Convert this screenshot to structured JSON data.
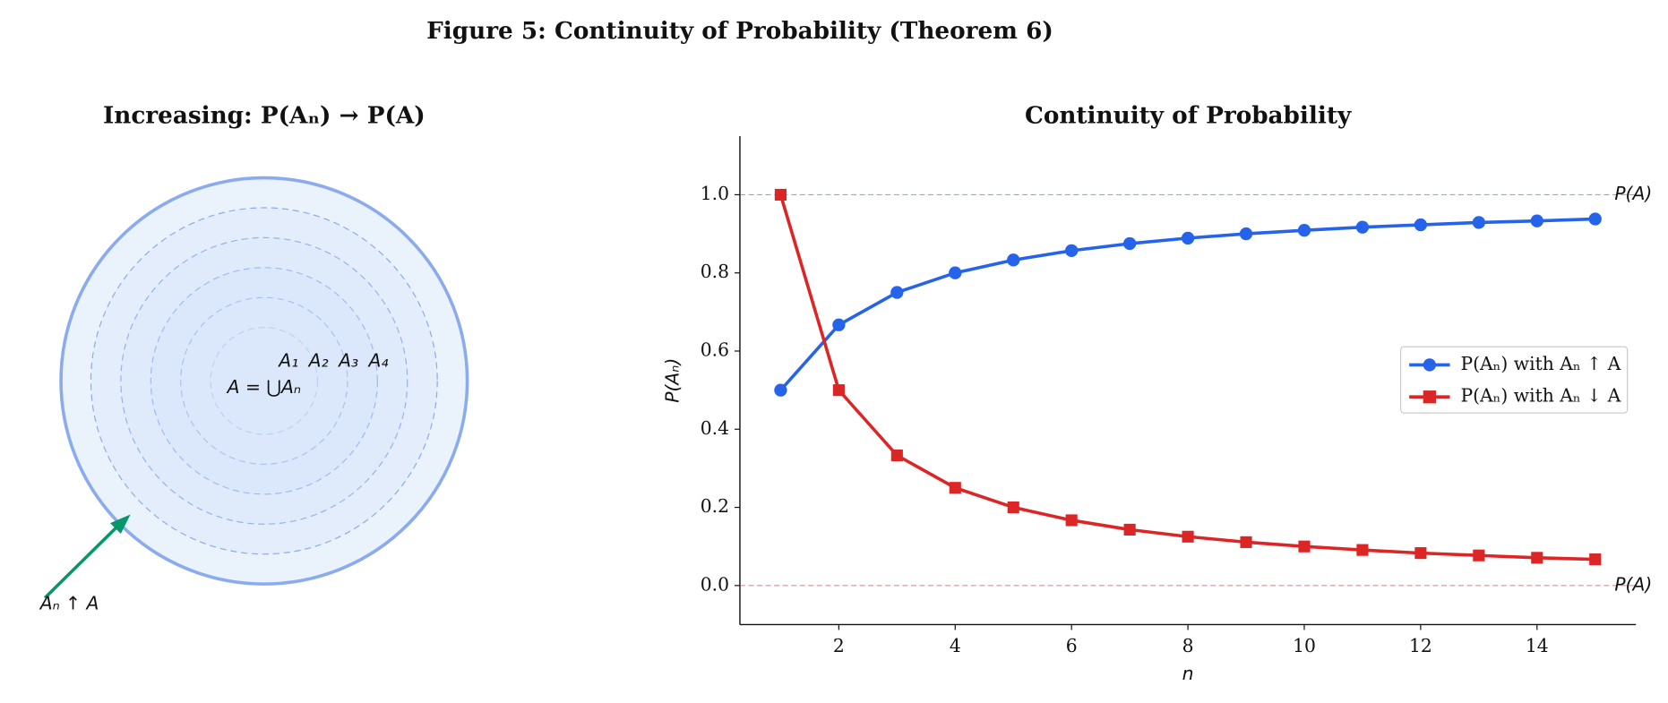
{
  "title": "Figure 5: Continuity of Probability (Theorem 6)",
  "chart_data": [
    {
      "type": "diagram",
      "title": "Increasing: P(Aₙ) → P(A)",
      "union_label": "A = ⋃Aₙ",
      "set_labels": [
        "A₁",
        "A₂",
        "A₃",
        "A₄"
      ],
      "arrow_label": "Aₙ ↑ A",
      "color": "#2563eb",
      "arrow_color": "#059669"
    },
    {
      "type": "line",
      "title": "Continuity of Probability",
      "xlabel": "n",
      "ylabel": "P(Aₙ)",
      "x": [
        1,
        2,
        3,
        4,
        5,
        6,
        7,
        8,
        9,
        10,
        11,
        12,
        13,
        14,
        15
      ],
      "series": [
        {
          "name": "P(Aₙ) with Aₙ ↑ A",
          "color": "#2563eb",
          "marker": "circle",
          "values": [
            0.5,
            0.667,
            0.75,
            0.8,
            0.833,
            0.857,
            0.875,
            0.889,
            0.9,
            0.909,
            0.917,
            0.923,
            0.929,
            0.933,
            0.938
          ]
        },
        {
          "name": "P(Aₙ) with Aₙ ↓ A",
          "color": "#dc2626",
          "marker": "square",
          "values": [
            1,
            0.5,
            0.333,
            0.25,
            0.2,
            0.167,
            0.143,
            0.125,
            0.111,
            0.1,
            0.091,
            0.083,
            0.077,
            0.071,
            0.067
          ]
        }
      ],
      "reference_lines": [
        {
          "value": 1,
          "label": "P(A)",
          "color": "#2563eb"
        },
        {
          "value": 0,
          "label": "P(A)",
          "color": "#dc2626"
        }
      ],
      "xlim": [
        0.3,
        15.7
      ],
      "ylim": [
        -0.1,
        1.15
      ],
      "xticks": [
        2,
        4,
        6,
        8,
        10,
        12,
        14
      ],
      "yticks": [
        {
          "value": 0,
          "label": "0.0"
        },
        {
          "value": 0.2,
          "label": "0.2"
        },
        {
          "value": 0.4,
          "label": "0.4"
        },
        {
          "value": 0.6,
          "label": "0.6"
        },
        {
          "value": 0.8,
          "label": "0.8"
        },
        {
          "value": 1,
          "label": "1.0"
        }
      ],
      "legend": "center right"
    }
  ]
}
